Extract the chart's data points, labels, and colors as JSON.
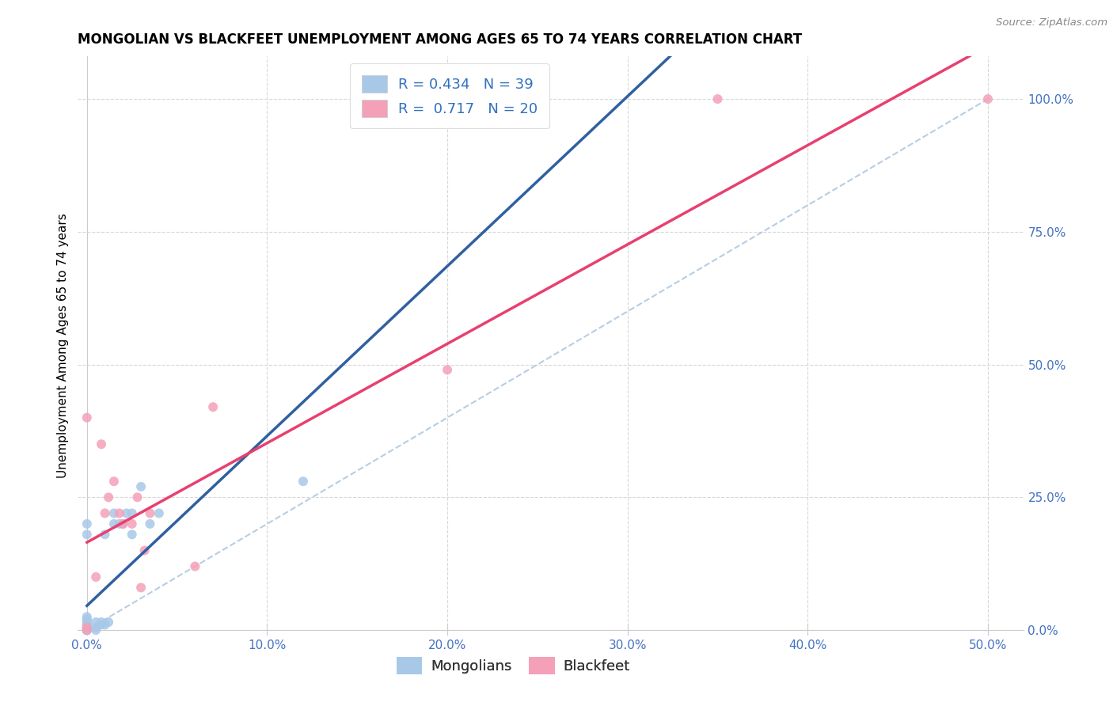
{
  "title": "MONGOLIAN VS BLACKFEET UNEMPLOYMENT AMONG AGES 65 TO 74 YEARS CORRELATION CHART",
  "source": "Source: ZipAtlas.com",
  "ylabel": "Unemployment Among Ages 65 to 74 years",
  "xlabel": "",
  "xlim": [
    -0.005,
    0.52
  ],
  "ylim": [
    -0.01,
    1.08
  ],
  "x_ticks": [
    0.0,
    0.1,
    0.2,
    0.3,
    0.4,
    0.5
  ],
  "y_ticks": [
    0.0,
    0.25,
    0.5,
    0.75,
    1.0
  ],
  "mongolian_color": "#a8c8e8",
  "blackfeet_color": "#f4a0b8",
  "mongolian_line_color": "#3060a0",
  "blackfeet_line_color": "#e84070",
  "diagonal_color": "#b0c8e0",
  "R_mongolian": 0.434,
  "N_mongolian": 39,
  "R_blackfeet": 0.717,
  "N_blackfeet": 20,
  "mongolian_x": [
    0.0,
    0.0,
    0.0,
    0.0,
    0.0,
    0.0,
    0.0,
    0.0,
    0.0,
    0.0,
    0.0,
    0.0,
    0.0,
    0.0,
    0.0,
    0.0,
    0.0,
    0.0,
    0.0,
    0.0,
    0.005,
    0.005,
    0.005,
    0.008,
    0.008,
    0.01,
    0.01,
    0.012,
    0.015,
    0.015,
    0.018,
    0.02,
    0.022,
    0.025,
    0.025,
    0.03,
    0.035,
    0.04,
    0.12
  ],
  "mongolian_y": [
    0.0,
    0.0,
    0.0,
    0.0,
    0.0,
    0.0,
    0.0,
    0.0,
    0.0,
    0.005,
    0.005,
    0.007,
    0.01,
    0.01,
    0.015,
    0.02,
    0.02,
    0.025,
    0.18,
    0.2,
    0.0,
    0.005,
    0.015,
    0.01,
    0.015,
    0.01,
    0.18,
    0.015,
    0.2,
    0.22,
    0.2,
    0.2,
    0.22,
    0.18,
    0.22,
    0.27,
    0.2,
    0.22,
    0.28
  ],
  "blackfeet_x": [
    0.0,
    0.0,
    0.0,
    0.005,
    0.008,
    0.01,
    0.012,
    0.015,
    0.018,
    0.02,
    0.025,
    0.028,
    0.03,
    0.032,
    0.035,
    0.06,
    0.07,
    0.2,
    0.35,
    0.5
  ],
  "blackfeet_y": [
    0.0,
    0.005,
    0.4,
    0.1,
    0.35,
    0.22,
    0.25,
    0.28,
    0.22,
    0.2,
    0.2,
    0.25,
    0.08,
    0.15,
    0.22,
    0.12,
    0.42,
    0.49,
    1.0,
    1.0
  ],
  "background_color": "#ffffff",
  "grid_color": "#d8d8d8",
  "title_fontsize": 12,
  "label_fontsize": 11,
  "tick_fontsize": 11,
  "legend_fontsize": 13,
  "marker_size": 75,
  "legend_r_n_color": "#3070c0",
  "legend_text_color": "#333333"
}
